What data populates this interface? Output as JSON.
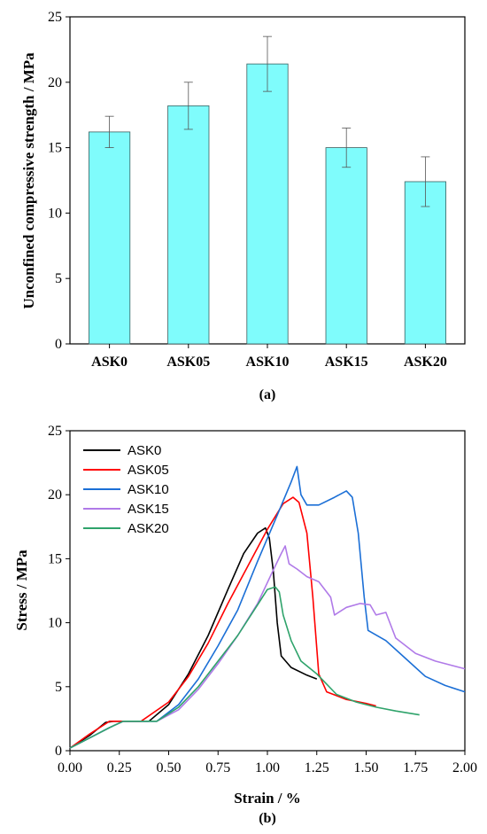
{
  "chart_data": [
    {
      "type": "bar",
      "panel_label": "(a)",
      "ylabel": "Unconfined compressive strength / MPa",
      "ylim": [
        0,
        25
      ],
      "yticks": [
        0,
        5,
        10,
        15,
        20,
        25
      ],
      "categories": [
        "ASK0",
        "ASK05",
        "ASK10",
        "ASK15",
        "ASK20"
      ],
      "values": [
        16.2,
        18.2,
        21.4,
        15.0,
        12.4
      ],
      "error": [
        1.2,
        1.8,
        2.1,
        1.5,
        1.9
      ],
      "bar_color": "#7ffcfc",
      "grid": false
    },
    {
      "type": "line",
      "panel_label": "(b)",
      "xlabel": "Strain / %",
      "ylabel": "Stress / MPa",
      "xlim": [
        0,
        2.0
      ],
      "ylim": [
        0,
        25
      ],
      "xticks": [
        "0.00",
        "0.25",
        "0.50",
        "0.75",
        "1.00",
        "1.25",
        "1.50",
        "1.75",
        "2.00"
      ],
      "yticks": [
        0,
        5,
        10,
        15,
        20,
        25
      ],
      "legend_position": "top-left",
      "grid": false,
      "series": [
        {
          "name": "ASK0",
          "color": "#000000",
          "points": [
            [
              0,
              0.2
            ],
            [
              0.1,
              1.2
            ],
            [
              0.18,
              2.2
            ],
            [
              0.22,
              2.3
            ],
            [
              0.4,
              2.3
            ],
            [
              0.5,
              3.6
            ],
            [
              0.6,
              6.0
            ],
            [
              0.7,
              9.0
            ],
            [
              0.8,
              12.6
            ],
            [
              0.88,
              15.4
            ],
            [
              0.95,
              17.0
            ],
            [
              0.99,
              17.4
            ],
            [
              1.01,
              16.6
            ],
            [
              1.03,
              14.0
            ],
            [
              1.05,
              10.0
            ],
            [
              1.07,
              7.4
            ],
            [
              1.12,
              6.5
            ],
            [
              1.2,
              5.9
            ],
            [
              1.25,
              5.6
            ]
          ]
        },
        {
          "name": "ASK05",
          "color": "#ff0000",
          "points": [
            [
              0,
              0.2
            ],
            [
              0.1,
              1.3
            ],
            [
              0.2,
              2.3
            ],
            [
              0.24,
              2.3
            ],
            [
              0.36,
              2.3
            ],
            [
              0.5,
              3.8
            ],
            [
              0.6,
              5.8
            ],
            [
              0.7,
              8.4
            ],
            [
              0.8,
              11.5
            ],
            [
              0.9,
              14.4
            ],
            [
              1.0,
              17.3
            ],
            [
              1.08,
              19.3
            ],
            [
              1.13,
              19.8
            ],
            [
              1.16,
              19.4
            ],
            [
              1.2,
              17.0
            ],
            [
              1.23,
              12.0
            ],
            [
              1.26,
              6.0
            ],
            [
              1.3,
              4.6
            ],
            [
              1.4,
              4.0
            ],
            [
              1.5,
              3.7
            ],
            [
              1.55,
              3.5
            ]
          ]
        },
        {
          "name": "ASK10",
          "color": "#1b6fd6",
          "points": [
            [
              0,
              0.2
            ],
            [
              0.1,
              1.0
            ],
            [
              0.2,
              1.8
            ],
            [
              0.27,
              2.3
            ],
            [
              0.44,
              2.3
            ],
            [
              0.55,
              3.6
            ],
            [
              0.65,
              5.6
            ],
            [
              0.75,
              8.2
            ],
            [
              0.85,
              11.0
            ],
            [
              0.95,
              14.8
            ],
            [
              1.05,
              18.4
            ],
            [
              1.12,
              21.0
            ],
            [
              1.15,
              22.2
            ],
            [
              1.17,
              20.0
            ],
            [
              1.2,
              19.2
            ],
            [
              1.26,
              19.2
            ],
            [
              1.34,
              19.8
            ],
            [
              1.4,
              20.3
            ],
            [
              1.43,
              19.8
            ],
            [
              1.46,
              17.0
            ],
            [
              1.49,
              12.0
            ],
            [
              1.51,
              9.4
            ],
            [
              1.6,
              8.6
            ],
            [
              1.7,
              7.2
            ],
            [
              1.8,
              5.8
            ],
            [
              1.9,
              5.1
            ],
            [
              2.0,
              4.6
            ]
          ]
        },
        {
          "name": "ASK15",
          "color": "#b07ae8",
          "points": [
            [
              0,
              0.2
            ],
            [
              0.1,
              1.0
            ],
            [
              0.2,
              1.8
            ],
            [
              0.27,
              2.3
            ],
            [
              0.44,
              2.3
            ],
            [
              0.55,
              3.2
            ],
            [
              0.65,
              4.8
            ],
            [
              0.75,
              6.8
            ],
            [
              0.85,
              9.0
            ],
            [
              0.95,
              11.5
            ],
            [
              1.02,
              13.8
            ],
            [
              1.07,
              15.4
            ],
            [
              1.09,
              16.0
            ],
            [
              1.11,
              14.6
            ],
            [
              1.15,
              14.2
            ],
            [
              1.2,
              13.6
            ],
            [
              1.26,
              13.2
            ],
            [
              1.32,
              12.0
            ],
            [
              1.34,
              10.6
            ],
            [
              1.4,
              11.2
            ],
            [
              1.47,
              11.5
            ],
            [
              1.52,
              11.4
            ],
            [
              1.55,
              10.6
            ],
            [
              1.6,
              10.8
            ],
            [
              1.65,
              8.8
            ],
            [
              1.75,
              7.6
            ],
            [
              1.85,
              7.0
            ],
            [
              2.0,
              6.4
            ]
          ]
        },
        {
          "name": "ASK20",
          "color": "#2fa36b",
          "points": [
            [
              0,
              0.2
            ],
            [
              0.1,
              1.0
            ],
            [
              0.2,
              1.8
            ],
            [
              0.27,
              2.3
            ],
            [
              0.44,
              2.3
            ],
            [
              0.55,
              3.4
            ],
            [
              0.65,
              5.0
            ],
            [
              0.75,
              7.0
            ],
            [
              0.85,
              9.0
            ],
            [
              0.95,
              11.4
            ],
            [
              1.0,
              12.6
            ],
            [
              1.04,
              12.8
            ],
            [
              1.06,
              12.4
            ],
            [
              1.08,
              10.6
            ],
            [
              1.12,
              8.6
            ],
            [
              1.17,
              7.0
            ],
            [
              1.25,
              6.0
            ],
            [
              1.35,
              4.4
            ],
            [
              1.45,
              3.8
            ],
            [
              1.55,
              3.4
            ],
            [
              1.65,
              3.1
            ],
            [
              1.77,
              2.8
            ]
          ]
        }
      ]
    }
  ]
}
